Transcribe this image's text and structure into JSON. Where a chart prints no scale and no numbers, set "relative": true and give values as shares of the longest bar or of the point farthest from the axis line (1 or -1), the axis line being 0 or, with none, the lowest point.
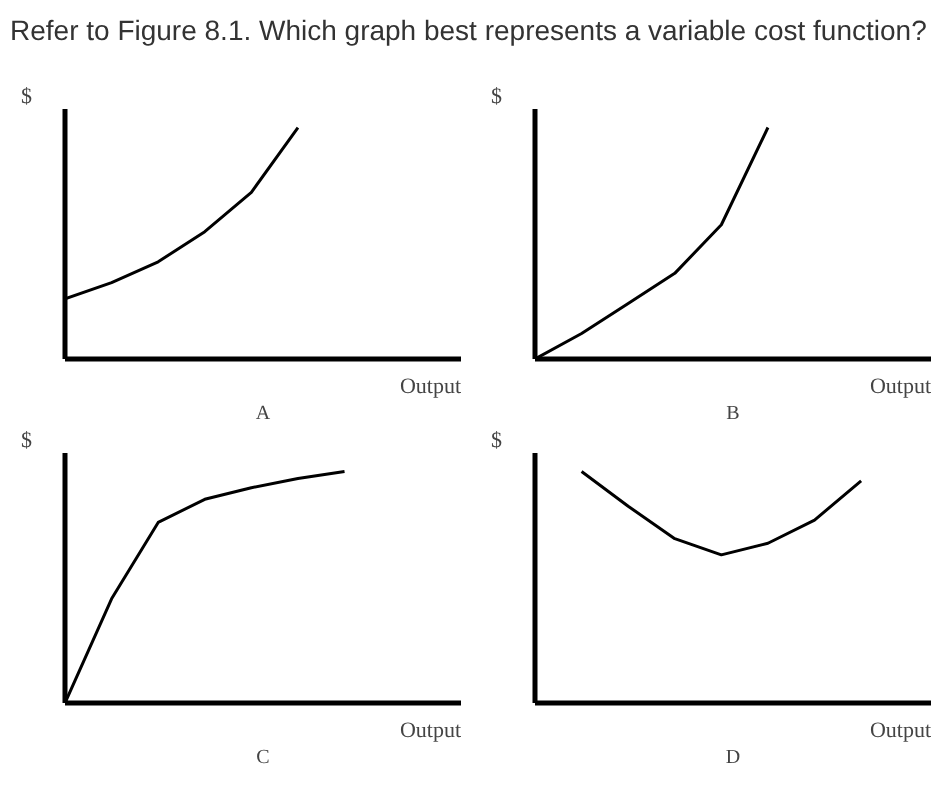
{
  "chart_data": [
    {
      "type": "line",
      "title": "Refer to Figure 8.1. Which graph best represents a variable cost function?",
      "relative": true,
      "xlabel": "Output",
      "ylabel": "$",
      "annotations": [
        "A"
      ],
      "categories": [
        null,
        null,
        null,
        null,
        null,
        null,
        null,
        null,
        null
      ],
      "series": [
        {
          "color": "#000000",
          "values": [
            0.26,
            0.33,
            0.42,
            0.55,
            0.72,
            1.0,
            null,
            null,
            null
          ]
        }
      ]
    },
    {
      "type": "line",
      "relative": true,
      "xlabel": "Output",
      "ylabel": "$",
      "annotations": [
        "B"
      ],
      "categories": [
        null,
        null,
        null,
        null,
        null,
        null,
        null,
        null,
        null
      ],
      "series": [
        {
          "color": "#000000",
          "values": [
            0,
            0.11,
            0.24,
            0.37,
            0.58,
            1.0,
            null,
            null,
            null
          ]
        }
      ]
    },
    {
      "type": "line",
      "relative": true,
      "xlabel": "Output",
      "ylabel": "$",
      "annotations": [
        "C"
      ],
      "categories": [
        null,
        null,
        null,
        null,
        null,
        null,
        null,
        null,
        null
      ],
      "series": [
        {
          "color": "#000000",
          "values": [
            0,
            0.45,
            0.78,
            0.88,
            0.93,
            0.97,
            1.0,
            null,
            null
          ]
        }
      ]
    },
    {
      "type": "line",
      "relative": true,
      "xlabel": "Output",
      "ylabel": "$",
      "annotations": [
        "D"
      ],
      "categories": [
        null,
        null,
        null,
        null,
        null,
        null,
        null,
        null,
        null
      ],
      "series": [
        {
          "color": "#000000",
          "values": [
            null,
            1.0,
            0.85,
            0.71,
            0.64,
            0.69,
            0.79,
            0.96,
            null
          ]
        }
      ]
    }
  ]
}
